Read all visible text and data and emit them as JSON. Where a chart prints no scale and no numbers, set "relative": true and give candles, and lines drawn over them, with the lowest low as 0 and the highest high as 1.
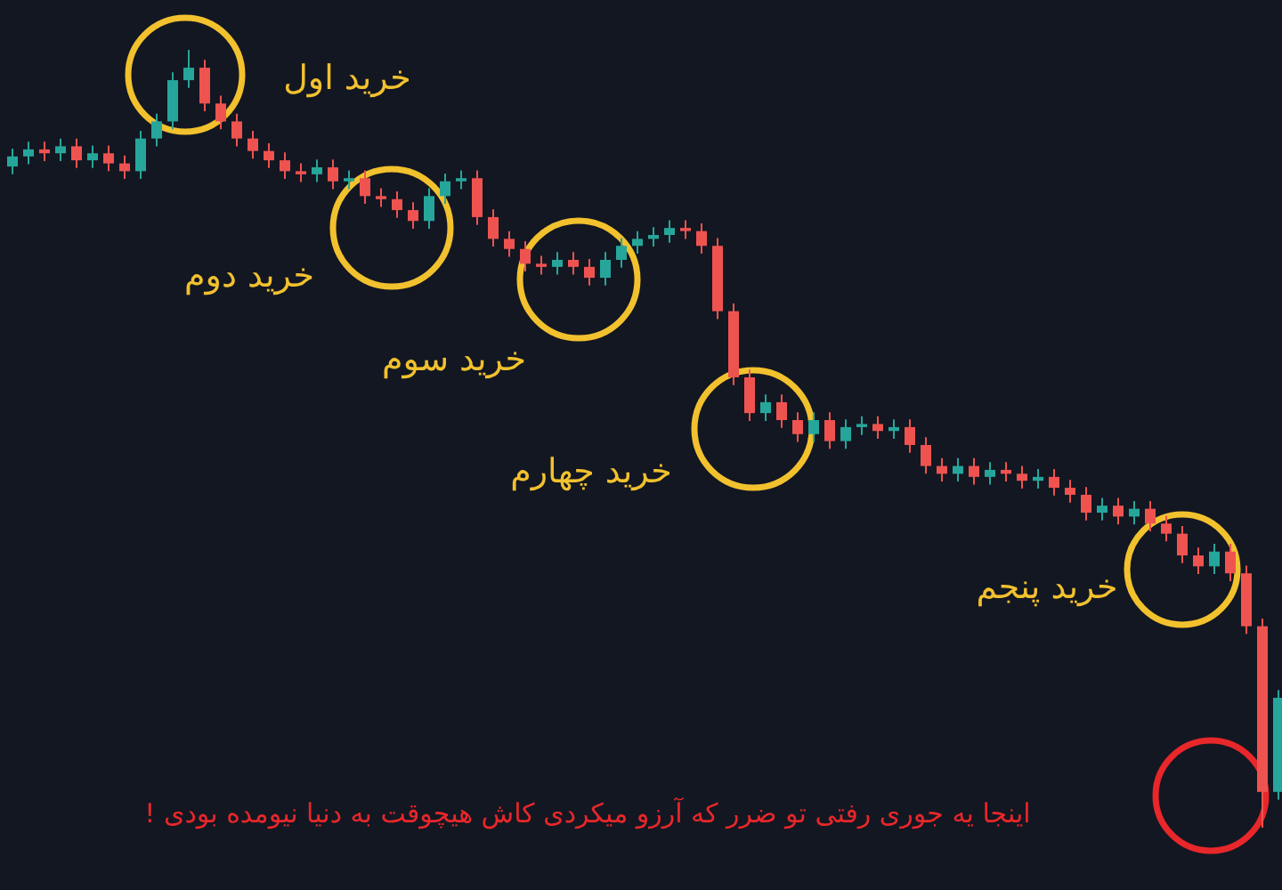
{
  "chart_data": {
    "type": "candlestick",
    "relative": true,
    "categories": [
      null,
      null,
      null,
      null,
      null,
      null,
      null,
      null,
      null,
      null,
      null,
      null,
      null,
      null,
      null,
      null,
      null,
      null,
      null,
      null,
      null,
      null,
      null,
      null,
      null,
      null,
      null,
      null,
      null,
      null,
      null,
      null,
      null,
      null,
      null,
      null,
      null,
      null,
      null,
      null,
      null,
      null,
      null,
      null,
      null,
      null,
      null,
      null,
      null,
      null,
      null,
      null,
      null,
      null,
      null,
      null,
      null,
      null,
      null,
      null,
      null,
      null,
      null,
      null,
      null,
      null,
      null,
      null,
      null,
      null,
      null,
      null,
      null,
      null,
      null,
      null,
      null,
      null,
      null,
      null
    ],
    "ohlc": [
      [
        0.85,
        0.873,
        0.84,
        0.863
      ],
      [
        0.863,
        0.882,
        0.853,
        0.872
      ],
      [
        0.872,
        0.882,
        0.857,
        0.867
      ],
      [
        0.867,
        0.886,
        0.857,
        0.876
      ],
      [
        0.876,
        0.886,
        0.848,
        0.858
      ],
      [
        0.858,
        0.877,
        0.848,
        0.867
      ],
      [
        0.867,
        0.877,
        0.844,
        0.854
      ],
      [
        0.854,
        0.864,
        0.834,
        0.844
      ],
      [
        0.844,
        0.896,
        0.834,
        0.886
      ],
      [
        0.886,
        0.918,
        0.876,
        0.908
      ],
      [
        0.908,
        0.971,
        0.898,
        0.961
      ],
      [
        0.961,
        1.0,
        0.951,
        0.977
      ],
      [
        0.977,
        0.987,
        0.921,
        0.931
      ],
      [
        0.931,
        0.941,
        0.898,
        0.908
      ],
      [
        0.908,
        0.918,
        0.876,
        0.886
      ],
      [
        0.886,
        0.896,
        0.86,
        0.87
      ],
      [
        0.87,
        0.88,
        0.848,
        0.858
      ],
      [
        0.858,
        0.868,
        0.834,
        0.844
      ],
      [
        0.844,
        0.854,
        0.83,
        0.84
      ],
      [
        0.84,
        0.859,
        0.83,
        0.849
      ],
      [
        0.849,
        0.859,
        0.821,
        0.831
      ],
      [
        0.831,
        0.845,
        0.821,
        0.835
      ],
      [
        0.835,
        0.845,
        0.802,
        0.812
      ],
      [
        0.812,
        0.822,
        0.798,
        0.808
      ],
      [
        0.808,
        0.818,
        0.784,
        0.794
      ],
      [
        0.794,
        0.804,
        0.77,
        0.78
      ],
      [
        0.78,
        0.822,
        0.77,
        0.812
      ],
      [
        0.812,
        0.841,
        0.802,
        0.831
      ],
      [
        0.831,
        0.845,
        0.821,
        0.835
      ],
      [
        0.835,
        0.845,
        0.775,
        0.785
      ],
      [
        0.785,
        0.795,
        0.747,
        0.757
      ],
      [
        0.757,
        0.767,
        0.734,
        0.744
      ],
      [
        0.744,
        0.754,
        0.715,
        0.725
      ],
      [
        0.725,
        0.735,
        0.711,
        0.721
      ],
      [
        0.721,
        0.74,
        0.711,
        0.73
      ],
      [
        0.73,
        0.74,
        0.711,
        0.721
      ],
      [
        0.721,
        0.731,
        0.697,
        0.707
      ],
      [
        0.707,
        0.74,
        0.697,
        0.73
      ],
      [
        0.73,
        0.758,
        0.72,
        0.748
      ],
      [
        0.748,
        0.767,
        0.738,
        0.757
      ],
      [
        0.757,
        0.772,
        0.747,
        0.762
      ],
      [
        0.762,
        0.781,
        0.752,
        0.771
      ],
      [
        0.771,
        0.781,
        0.757,
        0.767
      ],
      [
        0.767,
        0.777,
        0.738,
        0.748
      ],
      [
        0.748,
        0.758,
        0.654,
        0.664
      ],
      [
        0.664,
        0.674,
        0.569,
        0.579
      ],
      [
        0.579,
        0.589,
        0.523,
        0.533
      ],
      [
        0.533,
        0.557,
        0.523,
        0.547
      ],
      [
        0.547,
        0.557,
        0.514,
        0.524
      ],
      [
        0.524,
        0.534,
        0.496,
        0.506
      ],
      [
        0.506,
        0.534,
        0.496,
        0.524
      ],
      [
        0.524,
        0.534,
        0.487,
        0.497
      ],
      [
        0.497,
        0.525,
        0.487,
        0.515
      ],
      [
        0.515,
        0.529,
        0.505,
        0.519
      ],
      [
        0.519,
        0.529,
        0.5,
        0.51
      ],
      [
        0.51,
        0.525,
        0.5,
        0.515
      ],
      [
        0.515,
        0.525,
        0.482,
        0.492
      ],
      [
        0.492,
        0.502,
        0.455,
        0.465
      ],
      [
        0.465,
        0.475,
        0.445,
        0.455
      ],
      [
        0.455,
        0.475,
        0.445,
        0.465
      ],
      [
        0.465,
        0.475,
        0.441,
        0.451
      ],
      [
        0.451,
        0.47,
        0.441,
        0.46
      ],
      [
        0.46,
        0.47,
        0.445,
        0.455
      ],
      [
        0.455,
        0.465,
        0.436,
        0.446
      ],
      [
        0.446,
        0.461,
        0.436,
        0.451
      ],
      [
        0.451,
        0.461,
        0.427,
        0.437
      ],
      [
        0.437,
        0.447,
        0.418,
        0.428
      ],
      [
        0.428,
        0.438,
        0.395,
        0.405
      ],
      [
        0.405,
        0.424,
        0.395,
        0.414
      ],
      [
        0.414,
        0.424,
        0.39,
        0.4
      ],
      [
        0.4,
        0.42,
        0.39,
        0.41
      ],
      [
        0.41,
        0.42,
        0.381,
        0.391
      ],
      [
        0.391,
        0.401,
        0.368,
        0.378
      ],
      [
        0.378,
        0.388,
        0.34,
        0.35
      ],
      [
        0.35,
        0.36,
        0.326,
        0.336
      ],
      [
        0.336,
        0.365,
        0.326,
        0.355
      ],
      [
        0.355,
        0.365,
        0.317,
        0.327
      ],
      [
        0.327,
        0.337,
        0.249,
        0.259
      ],
      [
        0.259,
        0.269,
        0.0,
        0.046
      ],
      [
        0.046,
        0.177,
        0.036,
        0.167
      ]
    ],
    "annotations": [
      "خرید اول",
      "خرید دوم",
      "خرید سوم",
      "خرید چهارم",
      "خرید پنجم",
      "اینجا یه جوری رفتی تو ضرر که آرزو میکردی کاش هیچوقت به دنیا نیومده بودی !"
    ]
  }
}
